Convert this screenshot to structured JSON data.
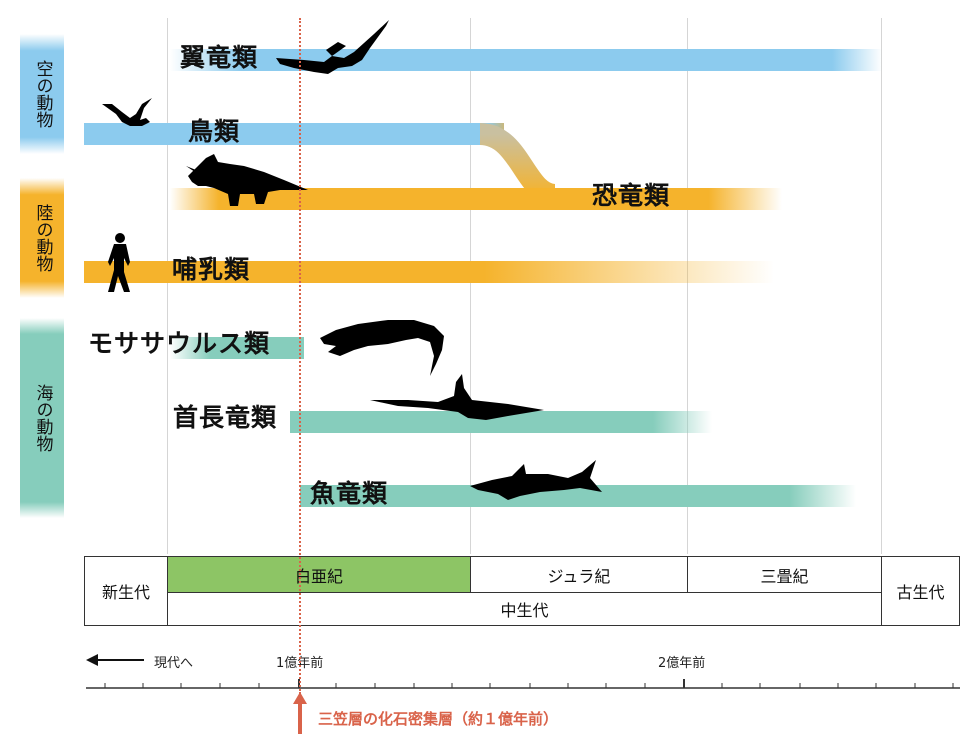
{
  "side_tabs": {
    "sky": "空の動物",
    "land": "陸の動物",
    "sea": "海の動物"
  },
  "lineages": {
    "pterosaurs": "翼竜類",
    "birds": "鳥類",
    "dinosaurs": "恐竜類",
    "mammals": "哺乳類",
    "mosasaurs": "モササウルス類",
    "plesiosaurs": "首長竜類",
    "ichthyosaurs": "魚竜類"
  },
  "eras": {
    "cenozoic": "新生代",
    "cretaceous": "白亜紀",
    "jurassic": "ジュラ紀",
    "triassic": "三畳紀",
    "paleozoic": "古生代",
    "mesozoic": "中生代"
  },
  "timeline": {
    "present_label": "現代へ",
    "tick_100my": "1億年前",
    "tick_200my": "2億年前",
    "marker_label": "三笠層の化石密集層（約１億年前）"
  },
  "colors": {
    "sky": "#8ccbee",
    "land": "#f5b32c",
    "sea": "#86cdbc",
    "cretaceous": "#8dc565",
    "marker": "#d9634a"
  }
}
